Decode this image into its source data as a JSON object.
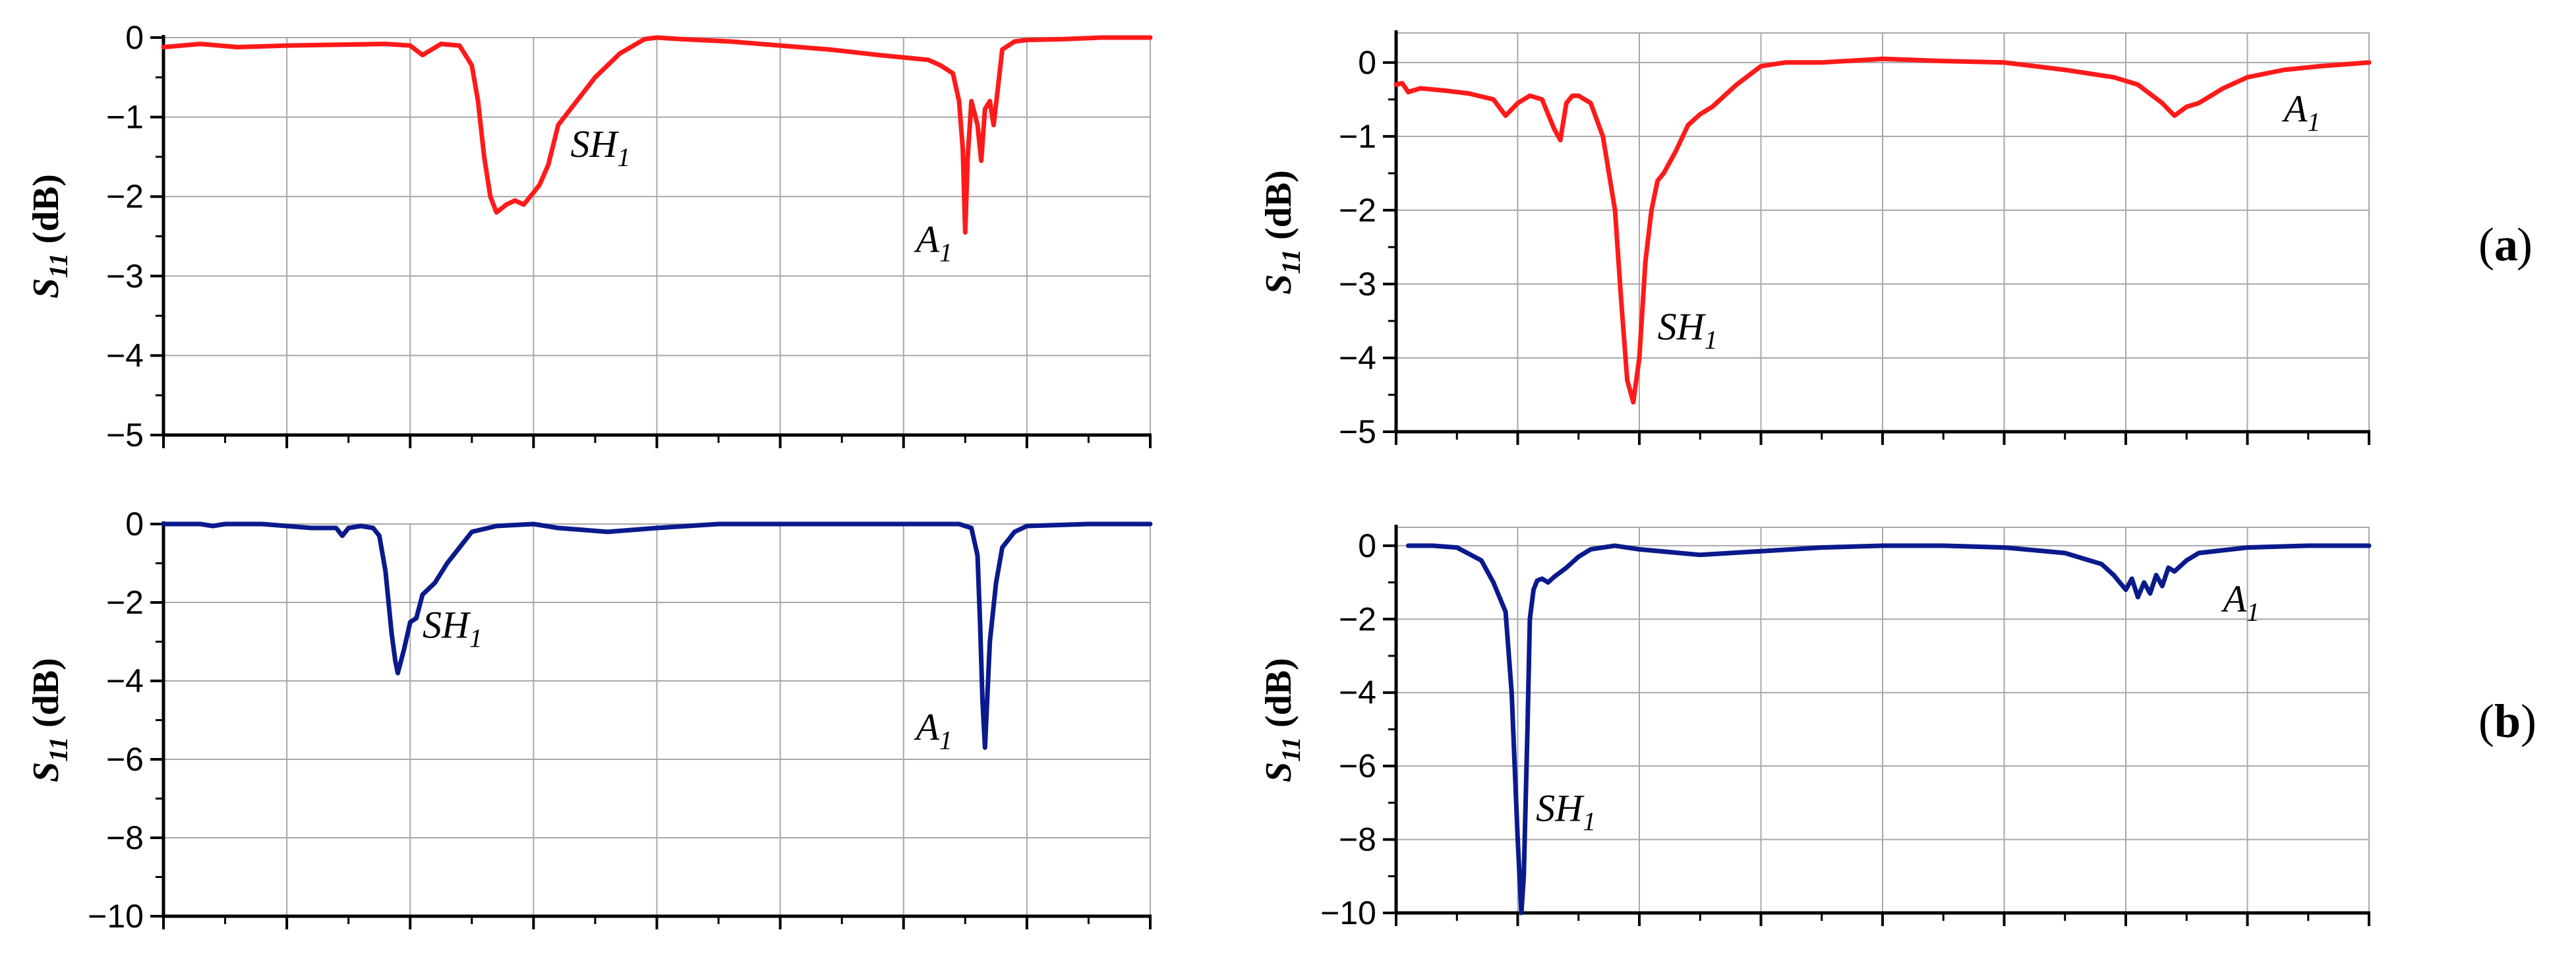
{
  "panel_labels": {
    "a_open": "(",
    "a_letter": "a",
    "a_close": ")",
    "b_open": "(",
    "b_letter": "b",
    "b_close": ")"
  },
  "colors": {
    "row_a": "#ff1a1a",
    "row_b": "#0a1a8c",
    "grid": "#a8a8a8",
    "axis": "#000000"
  },
  "chart_data": [
    {
      "id": "a-left",
      "type": "line",
      "row": "a",
      "color": "#ff1a1a",
      "ylabel": "S",
      "ylabel_sub": "11",
      "ylabel_unit": " (dB)",
      "ylim": [
        -5,
        0
      ],
      "yticks": [
        0,
        -1,
        -2,
        -3,
        -4,
        -5
      ],
      "yticklabels": [
        "0",
        "−1",
        "−2",
        "−3",
        "−4",
        "−5"
      ],
      "xlim": [
        0,
        8
      ],
      "xticks": [
        0,
        1,
        2,
        3,
        4,
        5,
        6,
        7,
        8
      ],
      "series": [
        {
          "name": "S11",
          "x": [
            0,
            0.3,
            0.6,
            1.0,
            1.4,
            1.8,
            2.0,
            2.1,
            2.25,
            2.4,
            2.5,
            2.55,
            2.6,
            2.65,
            2.7,
            2.78,
            2.85,
            2.92,
            3.0,
            3.05,
            3.12,
            3.2,
            3.3,
            3.5,
            3.7,
            3.9,
            4.0,
            4.2,
            4.6,
            5.0,
            5.4,
            5.8,
            6.2,
            6.3,
            6.4,
            6.45,
            6.48,
            6.5,
            6.52,
            6.55,
            6.6,
            6.63,
            6.66,
            6.7,
            6.73,
            6.76,
            6.8,
            6.9,
            7.0,
            7.3,
            7.6,
            8.0
          ],
          "y": [
            -0.12,
            -0.08,
            -0.12,
            -0.1,
            -0.09,
            -0.08,
            -0.1,
            -0.22,
            -0.08,
            -0.1,
            -0.35,
            -0.8,
            -1.5,
            -2.0,
            -2.2,
            -2.1,
            -2.05,
            -2.1,
            -1.95,
            -1.85,
            -1.6,
            -1.1,
            -0.9,
            -0.5,
            -0.2,
            -0.02,
            0.0,
            -0.02,
            -0.05,
            -0.1,
            -0.15,
            -0.22,
            -0.28,
            -0.35,
            -0.45,
            -0.8,
            -1.4,
            -2.45,
            -1.5,
            -0.8,
            -1.1,
            -1.55,
            -0.9,
            -0.8,
            -1.1,
            -0.7,
            -0.15,
            -0.05,
            -0.03,
            -0.02,
            0.0,
            0.0
          ]
        }
      ],
      "annotations": [
        {
          "label": "SH",
          "sub": "1",
          "x": 3.3,
          "y": -1.5
        },
        {
          "label": "A",
          "sub": "1",
          "x": 6.1,
          "y": -2.7
        }
      ]
    },
    {
      "id": "a-right",
      "type": "line",
      "row": "a",
      "color": "#ff1a1a",
      "ylabel": "S",
      "ylabel_sub": "11",
      "ylabel_unit": " (dB)",
      "ylim": [
        -5,
        0.4
      ],
      "yticks": [
        0,
        -1,
        -2,
        -3,
        -4,
        -5
      ],
      "yticklabels": [
        "0",
        "−1",
        "−2",
        "−3",
        "−4",
        "−5"
      ],
      "xlim": [
        0,
        8
      ],
      "xticks": [
        0,
        1,
        2,
        3,
        4,
        5,
        6,
        7,
        8
      ],
      "series": [
        {
          "name": "S11",
          "x": [
            0,
            0.05,
            0.1,
            0.2,
            0.4,
            0.6,
            0.8,
            0.9,
            1.0,
            1.1,
            1.2,
            1.3,
            1.35,
            1.4,
            1.45,
            1.5,
            1.6,
            1.7,
            1.8,
            1.85,
            1.9,
            1.95,
            2.0,
            2.05,
            2.1,
            2.15,
            2.2,
            2.3,
            2.4,
            2.5,
            2.6,
            2.8,
            3.0,
            3.2,
            3.5,
            4.0,
            4.5,
            5.0,
            5.5,
            5.9,
            6.1,
            6.3,
            6.4,
            6.5,
            6.6,
            6.8,
            7.0,
            7.3,
            7.6,
            8.0
          ],
          "y": [
            -0.3,
            -0.28,
            -0.4,
            -0.35,
            -0.38,
            -0.42,
            -0.5,
            -0.72,
            -0.55,
            -0.45,
            -0.5,
            -0.9,
            -1.05,
            -0.55,
            -0.45,
            -0.45,
            -0.55,
            -1.0,
            -2.0,
            -3.2,
            -4.3,
            -4.6,
            -4.0,
            -2.7,
            -2.0,
            -1.6,
            -1.5,
            -1.2,
            -0.85,
            -0.7,
            -0.6,
            -0.3,
            -0.05,
            0.0,
            0.0,
            0.05,
            0.02,
            0.0,
            -0.1,
            -0.2,
            -0.3,
            -0.55,
            -0.72,
            -0.6,
            -0.55,
            -0.35,
            -0.2,
            -0.1,
            -0.05,
            0.0
          ]
        }
      ],
      "annotations": [
        {
          "label": "SH",
          "sub": "1",
          "x": 2.15,
          "y": -3.75
        },
        {
          "label": "A",
          "sub": "1",
          "x": 7.3,
          "y": -0.8
        }
      ]
    },
    {
      "id": "b-left",
      "type": "line",
      "row": "b",
      "color": "#0a1a8c",
      "ylabel": "S",
      "ylabel_sub": "11",
      "ylabel_unit": " (dB)",
      "ylim": [
        -10,
        0
      ],
      "yticks": [
        0,
        -2,
        -4,
        -6,
        -8,
        -10
      ],
      "yticklabels": [
        "0",
        "−2",
        "−4",
        "−6",
        "−8",
        "−10"
      ],
      "xlim": [
        0,
        8
      ],
      "xticks": [
        0,
        1,
        2,
        3,
        4,
        5,
        6,
        7,
        8
      ],
      "series": [
        {
          "name": "S11",
          "x": [
            0,
            0.3,
            0.4,
            0.5,
            0.8,
            1.0,
            1.2,
            1.4,
            1.45,
            1.5,
            1.6,
            1.7,
            1.75,
            1.8,
            1.85,
            1.88,
            1.9,
            1.95,
            2.0,
            2.05,
            2.1,
            2.2,
            2.3,
            2.4,
            2.5,
            2.7,
            3.0,
            3.2,
            3.4,
            3.6,
            4.0,
            4.5,
            5.0,
            5.5,
            6.0,
            6.3,
            6.45,
            6.55,
            6.6,
            6.62,
            6.64,
            6.66,
            6.7,
            6.75,
            6.8,
            6.9,
            7.0,
            7.5,
            8.0
          ],
          "y": [
            0,
            0,
            -0.05,
            0.0,
            0.0,
            -0.05,
            -0.1,
            -0.1,
            -0.3,
            -0.1,
            -0.05,
            -0.1,
            -0.3,
            -1.2,
            -2.8,
            -3.5,
            -3.8,
            -3.2,
            -2.5,
            -2.4,
            -1.8,
            -1.5,
            -1.0,
            -0.6,
            -0.2,
            -0.05,
            0.0,
            -0.1,
            -0.15,
            -0.2,
            -0.1,
            0.0,
            0.0,
            0.0,
            0.0,
            0.0,
            0.0,
            -0.1,
            -0.8,
            -2.5,
            -4.5,
            -5.7,
            -3.0,
            -1.5,
            -0.6,
            -0.2,
            -0.05,
            0.0,
            0.0
          ]
        }
      ],
      "annotations": [
        {
          "label": "SH",
          "sub": "1",
          "x": 2.1,
          "y": -2.9
        },
        {
          "label": "A",
          "sub": "1",
          "x": 6.1,
          "y": -5.5
        }
      ]
    },
    {
      "id": "b-right",
      "type": "line",
      "row": "b",
      "color": "#0a1a8c",
      "ylabel": "S",
      "ylabel_sub": "11",
      "ylabel_unit": " (dB)",
      "ylim": [
        -10,
        0.5
      ],
      "yticks": [
        0,
        -2,
        -4,
        -6,
        -8,
        -10
      ],
      "yticklabels": [
        "0",
        "−2",
        "−4",
        "−6",
        "−8",
        "−10"
      ],
      "xlim": [
        0,
        8
      ],
      "xticks": [
        0,
        1,
        2,
        3,
        4,
        5,
        6,
        7,
        8
      ],
      "series": [
        {
          "name": "S11",
          "x": [
            0.1,
            0.3,
            0.5,
            0.7,
            0.8,
            0.9,
            0.95,
            1.0,
            1.03,
            1.05,
            1.08,
            1.1,
            1.13,
            1.16,
            1.2,
            1.25,
            1.3,
            1.4,
            1.5,
            1.6,
            1.7,
            1.8,
            2.0,
            2.5,
            3.0,
            3.5,
            4.0,
            4.5,
            5.0,
            5.5,
            5.8,
            5.9,
            6.0,
            6.05,
            6.1,
            6.15,
            6.2,
            6.25,
            6.3,
            6.35,
            6.4,
            6.5,
            6.6,
            7.0,
            7.5,
            8.0
          ],
          "y": [
            0,
            0,
            -0.05,
            -0.4,
            -1.0,
            -1.8,
            -4.0,
            -8.0,
            -10.0,
            -9.0,
            -5.0,
            -2.0,
            -1.2,
            -0.95,
            -0.9,
            -1.0,
            -0.85,
            -0.6,
            -0.3,
            -0.1,
            -0.05,
            0.0,
            -0.1,
            -0.25,
            -0.15,
            -0.05,
            0.0,
            0.0,
            -0.05,
            -0.2,
            -0.5,
            -0.8,
            -1.2,
            -0.9,
            -1.4,
            -1.0,
            -1.3,
            -0.8,
            -1.1,
            -0.6,
            -0.7,
            -0.4,
            -0.2,
            -0.05,
            0.0,
            0.0
          ]
        }
      ],
      "annotations": [
        {
          "label": "SH",
          "sub": "1",
          "x": 1.15,
          "y": -7.5
        },
        {
          "label": "A",
          "sub": "1",
          "x": 6.8,
          "y": -1.8
        }
      ]
    }
  ]
}
